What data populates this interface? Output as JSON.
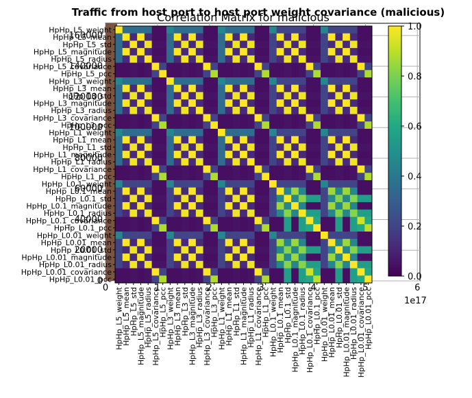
{
  "chart_data": {
    "type": "heatmap",
    "outer_title": "Traffic from host port to host port weight covariance (malicious)",
    "title": "Correlation Matrix for malicious",
    "labels": [
      "HpHp_L5_weight",
      "HpHp_L5_mean",
      "HpHp_L5_std",
      "HpHp_L5_magnitude",
      "HpHp_L5_radius",
      "HpHp_L5_covariance",
      "HpHp_L5_pcc",
      "HpHp_L3_weight",
      "HpHp_L3_mean",
      "HpHp_L3_std",
      "HpHp_L3_magnitude",
      "HpHp_L3_radius",
      "HpHp_L3_covariance",
      "HpHp_L3_pcc",
      "HpHp_L1_weight",
      "HpHp_L1_mean",
      "HpHp_L1_std",
      "HpHp_L1_magnitude",
      "HpHp_L1_radius",
      "HpHp_L1_covariance",
      "HpHp_L1_pcc",
      "HpHp_L0.1_weight",
      "HpHp_L0.1_mean",
      "HpHp_L0.1_std",
      "HpHp_L0.1_magnitude",
      "HpHp_L0.1_radius",
      "HpHp_L0.1_covariance",
      "HpHp_L0.1_pcc",
      "HpHp_L0.01_weight",
      "HpHp_L0.01_mean",
      "HpHp_L0.01_std",
      "HpHp_L0.01_magnitude",
      "HpHp_L0.01_radius",
      "HpHp_L0.01_covariance",
      "HpHp_L0.01_pcc"
    ],
    "colorbar": {
      "min": 0.0,
      "max": 1.0,
      "ticks": [
        "0.0",
        "0.2",
        "0.4",
        "0.6",
        "0.8",
        "1.0"
      ],
      "colormap": "viridis"
    },
    "background_histogram": {
      "x_ticks": [
        "0",
        "1",
        "2",
        "3",
        "4",
        "5",
        "6"
      ],
      "x_offset_label": "1e17",
      "y_ticks": [
        "0",
        "20000",
        "40000",
        "60000",
        "80000",
        "100000",
        "120000",
        "140000",
        "160000"
      ],
      "bar_color": "#7a5543",
      "bar_count_estimate": 160000,
      "bar_x_extent": [
        0,
        0.05
      ]
    }
  }
}
